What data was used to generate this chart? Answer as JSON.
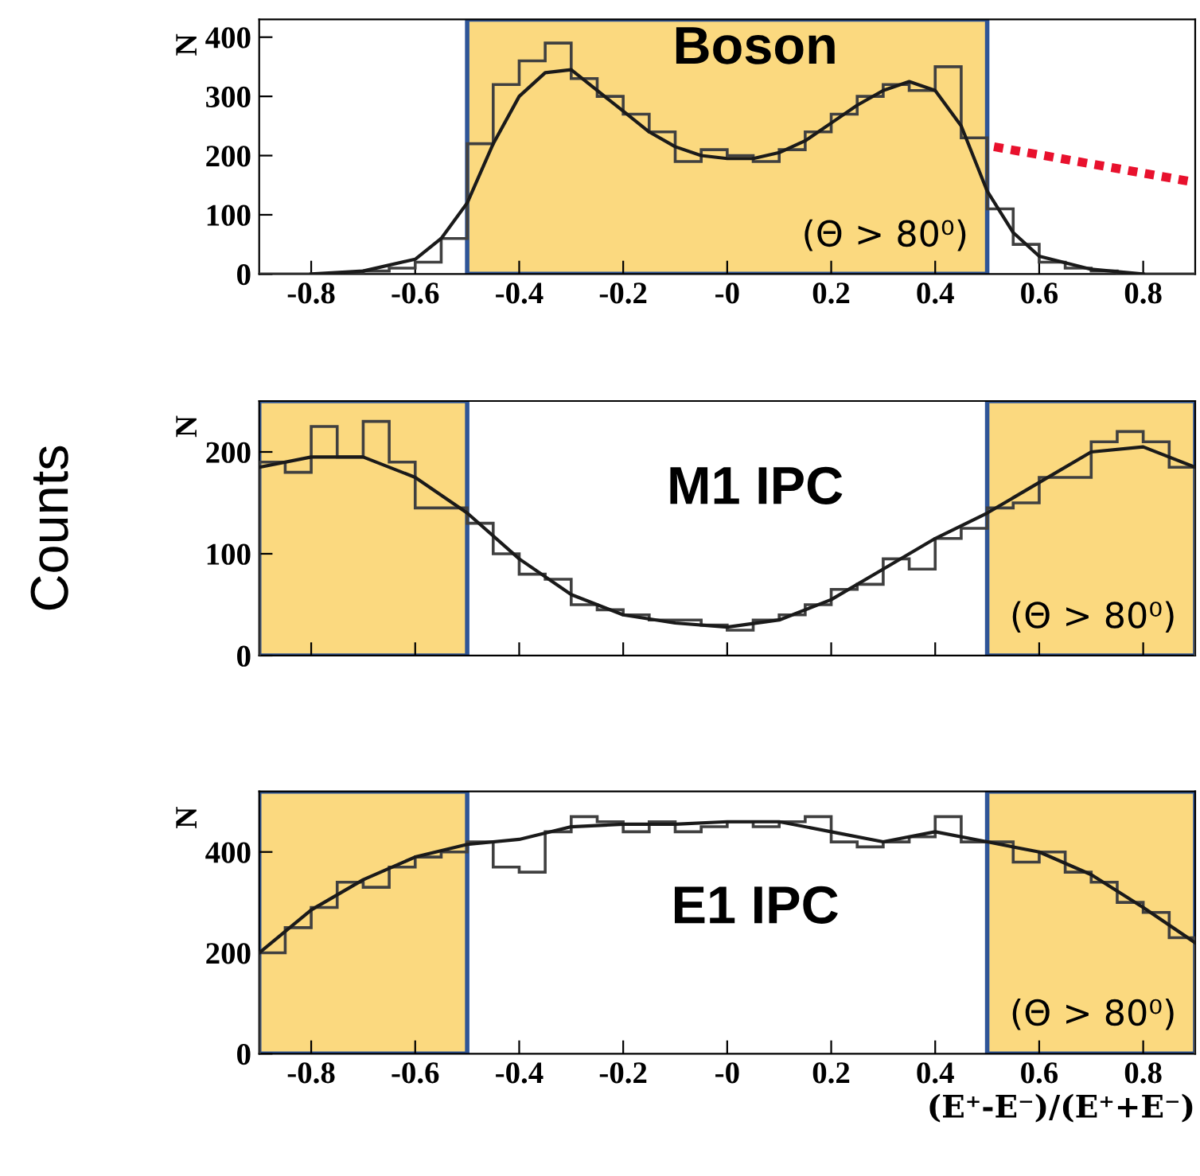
{
  "chart_data": [
    {
      "type": "histogram",
      "title": "Boson",
      "ylabel": "N",
      "bins": [
        -0.9,
        -0.85,
        -0.8,
        -0.75,
        -0.7,
        -0.65,
        -0.6,
        -0.55,
        -0.5,
        -0.45,
        -0.4,
        -0.35,
        -0.3,
        -0.25,
        -0.2,
        -0.15,
        -0.1,
        -0.05,
        0,
        0.05,
        0.1,
        0.15,
        0.2,
        0.25,
        0.3,
        0.35,
        0.4,
        0.45,
        0.5,
        0.55,
        0.6,
        0.65,
        0.7,
        0.75,
        0.8,
        0.85,
        0.9
      ],
      "values": [
        0,
        0,
        0,
        0,
        5,
        10,
        20,
        60,
        220,
        320,
        360,
        390,
        330,
        300,
        270,
        240,
        190,
        210,
        200,
        190,
        210,
        240,
        270,
        300,
        320,
        310,
        350,
        230,
        110,
        50,
        20,
        10,
        5,
        0,
        0,
        0
      ],
      "color": "#404040",
      "series": [
        {
          "type": "line",
          "color": "#1a1a1a",
          "x": [
            -0.8,
            -0.7,
            -0.6,
            -0.55,
            -0.5,
            -0.45,
            -0.4,
            -0.35,
            -0.3,
            -0.25,
            -0.2,
            -0.15,
            -0.1,
            -0.05,
            0,
            0.05,
            0.1,
            0.15,
            0.2,
            0.25,
            0.3,
            0.35,
            0.4,
            0.45,
            0.5,
            0.55,
            0.6,
            0.7,
            0.8
          ],
          "values": [
            0,
            5,
            25,
            60,
            120,
            220,
            300,
            340,
            345,
            310,
            275,
            240,
            215,
            200,
            195,
            195,
            205,
            225,
            255,
            285,
            310,
            325,
            310,
            250,
            140,
            70,
            30,
            8,
            0
          ]
        }
      ],
      "bands": [
        {
          "axis": "x",
          "from": -0.5,
          "to": 0.5,
          "label": "(Θ > 80⁰)",
          "color": "#fbd97f"
        }
      ],
      "xlim": [
        -0.9,
        0.9
      ],
      "ylim": [
        0,
        430
      ],
      "xticks": [
        -0.8,
        -0.6,
        -0.4,
        -0.2,
        {
          "value": 0,
          "label": "-0"
        },
        0.2,
        0.4,
        0.6,
        0.8
      ],
      "yticks": [
        0,
        100,
        200,
        300,
        400
      ],
      "grid": false
    },
    {
      "type": "histogram",
      "title": "M1 IPC",
      "ylabel": "N",
      "bins": [
        -0.9,
        -0.85,
        -0.8,
        -0.75,
        -0.7,
        -0.65,
        -0.6,
        -0.55,
        -0.5,
        -0.45,
        -0.4,
        -0.35,
        -0.3,
        -0.25,
        -0.2,
        -0.15,
        -0.1,
        -0.05,
        0,
        0.05,
        0.1,
        0.15,
        0.2,
        0.25,
        0.3,
        0.35,
        0.4,
        0.45,
        0.5,
        0.55,
        0.6,
        0.65,
        0.7,
        0.75,
        0.8,
        0.85,
        0.9
      ],
      "values": [
        190,
        180,
        225,
        195,
        230,
        190,
        145,
        145,
        130,
        100,
        80,
        75,
        50,
        45,
        40,
        35,
        35,
        30,
        25,
        35,
        40,
        50,
        65,
        70,
        95,
        85,
        115,
        125,
        145,
        150,
        175,
        175,
        210,
        220,
        210,
        185
      ],
      "color": "#404040",
      "series": [
        {
          "type": "line",
          "color": "#1a1a1a",
          "x": [
            -0.9,
            -0.8,
            -0.7,
            -0.6,
            -0.5,
            -0.4,
            -0.3,
            -0.2,
            -0.1,
            0,
            0.1,
            0.2,
            0.3,
            0.4,
            0.5,
            0.6,
            0.7,
            0.8,
            0.9
          ],
          "values": [
            185,
            195,
            195,
            175,
            140,
            95,
            60,
            40,
            32,
            28,
            35,
            55,
            85,
            115,
            140,
            170,
            200,
            205,
            185
          ]
        }
      ],
      "bands": [
        {
          "axis": "x",
          "from": -0.9,
          "to": -0.5,
          "color": "#fbd97f"
        },
        {
          "axis": "x",
          "from": 0.5,
          "to": 0.9,
          "label": "(Θ > 80⁰)",
          "color": "#fbd97f"
        }
      ],
      "annotations": [
        "Counts"
      ],
      "xlim": [
        -0.9,
        0.9
      ],
      "ylim": [
        0,
        250
      ],
      "xticks": [
        {
          "value": -0.8,
          "label": null
        },
        {
          "value": -0.6,
          "label": null
        },
        {
          "value": -0.4,
          "label": null
        },
        {
          "value": -0.2,
          "label": null
        },
        {
          "value": 0,
          "label": null
        },
        {
          "value": 0.2,
          "label": null
        },
        {
          "value": 0.4,
          "label": null
        },
        {
          "value": 0.6,
          "label": null
        },
        {
          "value": 0.8,
          "label": null
        }
      ],
      "yticks": [
        0,
        100,
        200
      ],
      "tick_labels": "y",
      "grid": false
    },
    {
      "type": "histogram",
      "title": "E1 IPC",
      "ylabel": "N",
      "xlabel": "(E⁺-E⁻)/(E⁺+E⁻)",
      "bins": [
        -0.9,
        -0.85,
        -0.8,
        -0.75,
        -0.7,
        -0.65,
        -0.6,
        -0.55,
        -0.5,
        -0.45,
        -0.4,
        -0.35,
        -0.3,
        -0.25,
        -0.2,
        -0.15,
        -0.1,
        -0.05,
        0,
        0.05,
        0.1,
        0.15,
        0.2,
        0.25,
        0.3,
        0.35,
        0.4,
        0.45,
        0.5,
        0.55,
        0.6,
        0.65,
        0.7,
        0.75,
        0.8,
        0.85,
        0.9
      ],
      "values": [
        200,
        250,
        290,
        340,
        330,
        370,
        390,
        400,
        420,
        370,
        360,
        440,
        470,
        460,
        440,
        460,
        440,
        450,
        460,
        450,
        460,
        470,
        420,
        410,
        420,
        430,
        470,
        420,
        420,
        380,
        400,
        360,
        340,
        300,
        280,
        230
      ],
      "color": "#404040",
      "series": [
        {
          "type": "line",
          "color": "#1a1a1a",
          "x": [
            -0.9,
            -0.8,
            -0.7,
            -0.6,
            -0.5,
            -0.4,
            -0.3,
            -0.2,
            -0.1,
            0,
            0.1,
            0.2,
            0.3,
            0.4,
            0.5,
            0.6,
            0.7,
            0.8,
            0.9
          ],
          "values": [
            200,
            285,
            345,
            390,
            415,
            425,
            450,
            455,
            455,
            460,
            460,
            440,
            420,
            440,
            420,
            400,
            355,
            290,
            220
          ]
        }
      ],
      "bands": [
        {
          "axis": "x",
          "from": -0.9,
          "to": -0.5,
          "color": "#fbd97f"
        },
        {
          "axis": "x",
          "from": 0.5,
          "to": 0.9,
          "label": "(Θ > 80⁰)",
          "color": "#fbd97f"
        }
      ],
      "xlim": [
        -0.9,
        0.9
      ],
      "ylim": [
        0,
        520
      ],
      "xticks": [
        -0.8,
        -0.6,
        -0.4,
        -0.2,
        {
          "value": 0,
          "label": "-0"
        },
        0.2,
        0.4,
        0.6,
        0.8
      ],
      "yticks": [
        0,
        200,
        400
      ],
      "grid": false
    }
  ]
}
